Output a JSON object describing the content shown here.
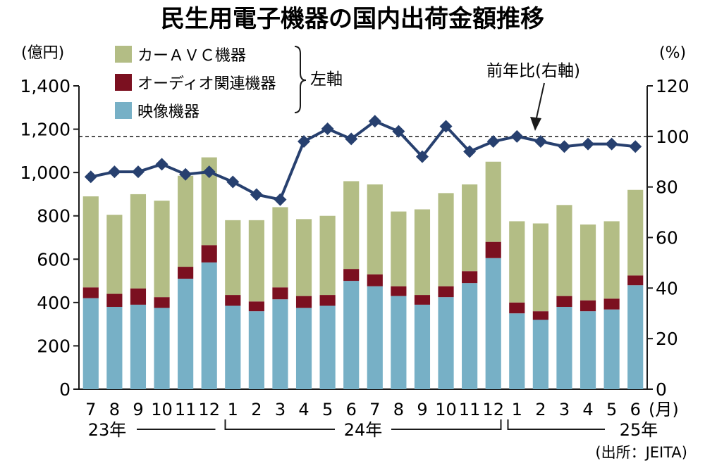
{
  "chart_data": {
    "type": "bar",
    "title": "民生用電子機器の国内出荷金額推移",
    "categories": [
      "7",
      "8",
      "9",
      "10",
      "11",
      "12",
      "1",
      "2",
      "3",
      "4",
      "5",
      "6",
      "7",
      "8",
      "9",
      "10",
      "11",
      "12",
      "1",
      "2",
      "3",
      "4",
      "5",
      "6"
    ],
    "x_unit": "(月)",
    "year_groups": [
      {
        "label": "23年",
        "start": 0,
        "end": 5
      },
      {
        "label": "24年",
        "start": 6,
        "end": 17
      },
      {
        "label": "25年",
        "start": 18,
        "end": 23
      }
    ],
    "stacked": true,
    "series": [
      {
        "name": "映像機器",
        "color": "#77b0c6",
        "axis": "left",
        "values": [
          420,
          380,
          390,
          375,
          510,
          585,
          385,
          360,
          415,
          375,
          385,
          500,
          475,
          430,
          390,
          425,
          490,
          605,
          350,
          320,
          380,
          360,
          368,
          480
        ]
      },
      {
        "name": "オーディオ関連機器",
        "color": "#7b1020",
        "axis": "left",
        "values": [
          50,
          60,
          75,
          50,
          55,
          80,
          50,
          45,
          55,
          55,
          50,
          55,
          55,
          45,
          45,
          50,
          55,
          75,
          50,
          40,
          50,
          50,
          50,
          45
        ]
      },
      {
        "name": "カーＡＶＣ機器",
        "color": "#b3bd85",
        "axis": "left",
        "values": [
          420,
          365,
          435,
          445,
          420,
          405,
          345,
          375,
          370,
          355,
          365,
          405,
          415,
          345,
          395,
          430,
          400,
          370,
          375,
          405,
          420,
          350,
          357,
          395
        ]
      },
      {
        "name": "前年比(右軸)",
        "type": "line",
        "axis": "right",
        "color": "#27406f",
        "values": [
          84,
          86,
          86,
          89,
          85,
          86,
          82,
          77,
          75,
          98,
          103,
          99,
          106,
          102,
          92,
          104,
          94,
          98,
          100,
          98,
          96,
          97,
          97,
          96
        ]
      }
    ],
    "left_axis": {
      "unit": "(億円)",
      "ylim": [
        0,
        1400
      ],
      "ticks": [
        "0",
        "200",
        "400",
        "600",
        "800",
        "1,000",
        "1,200",
        "1,400"
      ]
    },
    "right_axis": {
      "unit": "(%)",
      "ylim": [
        0,
        120
      ],
      "ticks": [
        "0",
        "20",
        "40",
        "60",
        "80",
        "100",
        "120"
      ]
    },
    "reference_line": {
      "axis": "right",
      "value": 100,
      "style": "dashed"
    },
    "legend_group_label": "左軸",
    "line_annotation": "前年比(右軸)",
    "source": "(出所：JEITA)",
    "grid": false,
    "legend_placement": "top-left"
  }
}
